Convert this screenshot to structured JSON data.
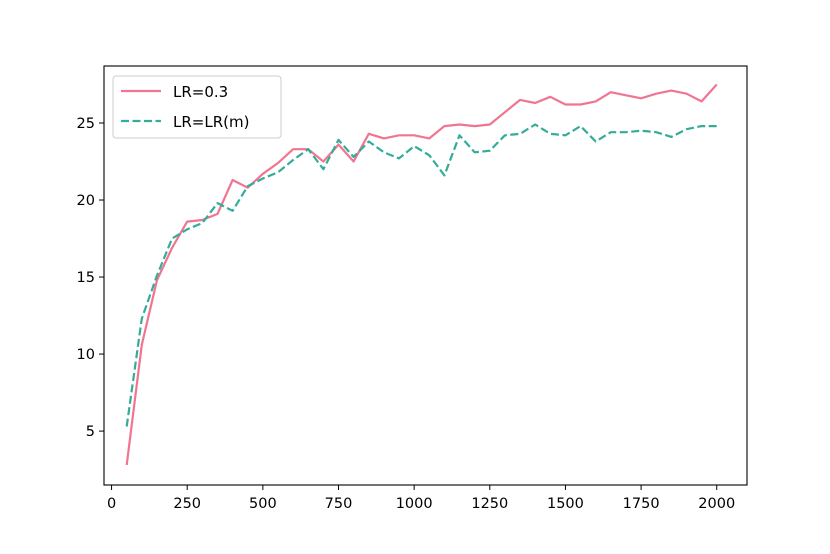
{
  "chart_data": {
    "type": "line",
    "title": "",
    "xlabel": "",
    "ylabel": "",
    "xlim": [
      -25,
      2100
    ],
    "ylim": [
      1.5,
      28.7
    ],
    "xticks": [
      0,
      250,
      500,
      750,
      1000,
      1250,
      1500,
      1750,
      2000
    ],
    "yticks": [
      5,
      10,
      15,
      20,
      25
    ],
    "grid": false,
    "legend_position": "top-left",
    "series": [
      {
        "name": "LR=0.3",
        "color": "#f07590",
        "dash": "solid",
        "x": [
          50,
          100,
          150,
          200,
          250,
          300,
          350,
          400,
          450,
          500,
          550,
          600,
          650,
          700,
          750,
          800,
          850,
          900,
          950,
          1000,
          1050,
          1100,
          1150,
          1200,
          1250,
          1300,
          1350,
          1400,
          1450,
          1500,
          1550,
          1600,
          1650,
          1700,
          1750,
          1800,
          1850,
          1900,
          1950,
          2000
        ],
        "y": [
          2.8,
          10.6,
          14.8,
          16.9,
          18.6,
          18.7,
          19.1,
          21.3,
          20.8,
          21.7,
          22.4,
          23.3,
          23.3,
          22.5,
          23.6,
          22.5,
          24.3,
          24.0,
          24.2,
          24.2,
          24.0,
          24.8,
          24.9,
          24.8,
          24.9,
          25.7,
          26.5,
          26.3,
          26.7,
          26.2,
          26.2,
          26.4,
          27.0,
          26.8,
          26.6,
          26.9,
          27.1,
          26.9,
          26.4,
          27.5
        ]
      },
      {
        "name": "LR=LR(m)",
        "color": "#35ab9a",
        "dash": "dashed",
        "x": [
          50,
          100,
          150,
          200,
          250,
          300,
          350,
          400,
          450,
          500,
          550,
          600,
          650,
          700,
          750,
          800,
          850,
          900,
          950,
          1000,
          1050,
          1100,
          1150,
          1200,
          1250,
          1300,
          1350,
          1400,
          1450,
          1500,
          1550,
          1600,
          1650,
          1700,
          1750,
          1800,
          1850,
          1900,
          1950,
          2000
        ],
        "y": [
          5.3,
          12.3,
          15.1,
          17.5,
          18.1,
          18.5,
          19.8,
          19.3,
          20.9,
          21.4,
          21.8,
          22.6,
          23.3,
          22.0,
          23.9,
          22.8,
          23.8,
          23.1,
          22.7,
          23.5,
          22.9,
          21.6,
          24.2,
          23.1,
          23.2,
          24.2,
          24.3,
          24.9,
          24.3,
          24.2,
          24.8,
          23.8,
          24.4,
          24.4,
          24.5,
          24.4,
          24.1,
          24.6,
          24.8,
          24.8
        ]
      }
    ]
  }
}
